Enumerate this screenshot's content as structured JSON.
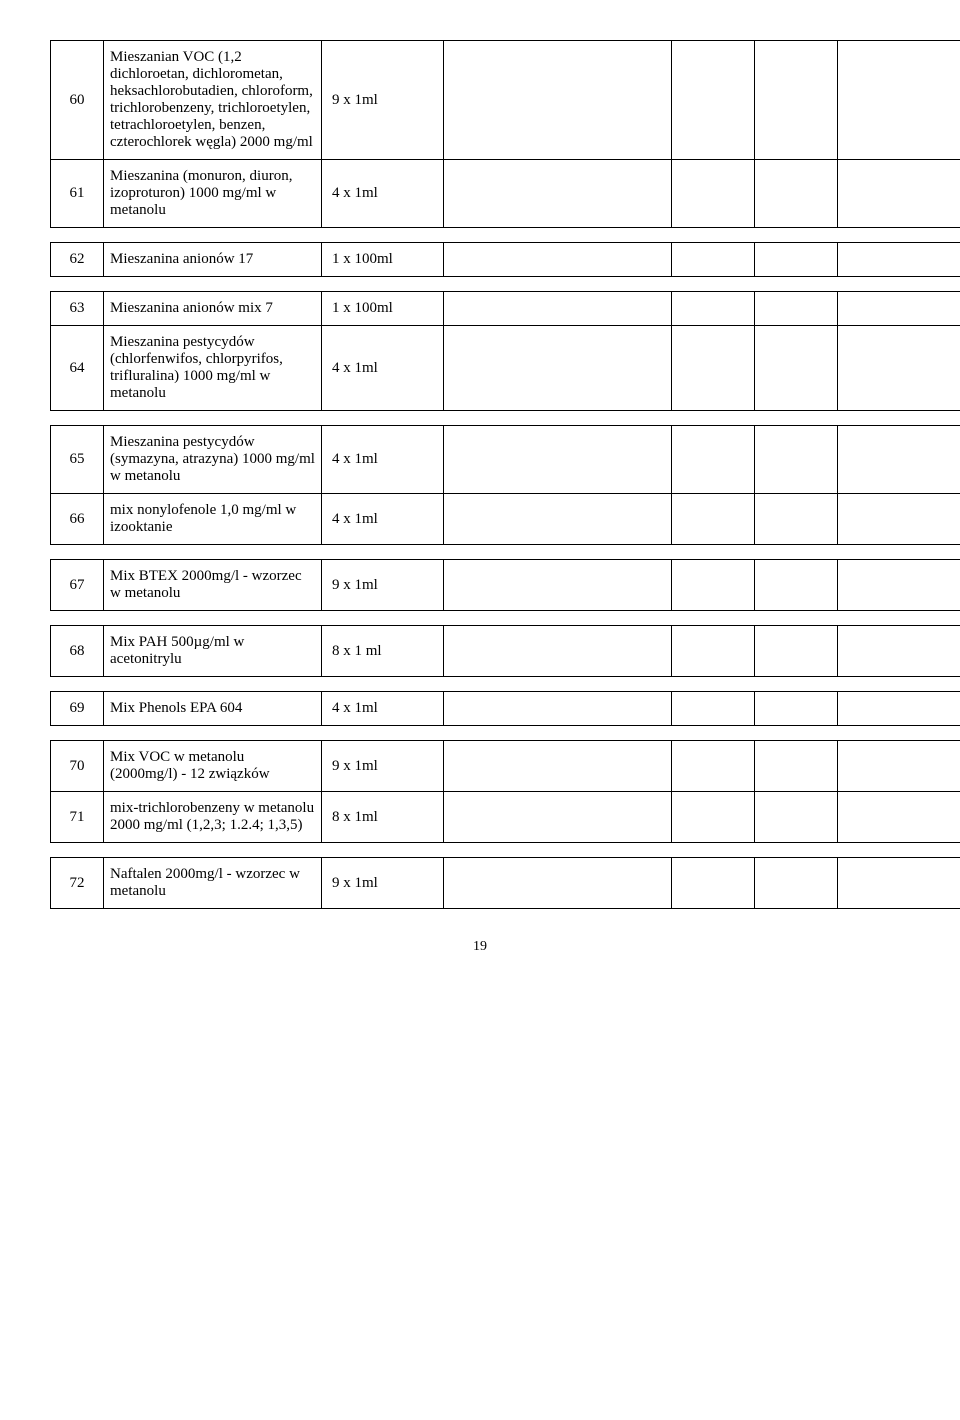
{
  "rows": [
    {
      "num": "60",
      "desc": "Mieszanian VOC (1,2 dichloroetan, dichlorometan, heksachlorobutadien, chloroform, trichlorobenzeny, trichloroetylen, tetrachloroetylen, benzen, czterochlorek węgla)  2000 mg/ml",
      "qty": "9 x  1ml"
    },
    {
      "num": "61",
      "desc": "Mieszanina (monuron, diuron, izoproturon) 1000 mg/ml w metanolu",
      "qty": "4 x  1ml"
    },
    {
      "num": "62",
      "desc": "Mieszanina anionów 17",
      "qty": "1 x 100ml"
    },
    {
      "num": "63",
      "desc": "Mieszanina anionów mix 7",
      "qty": "1 x 100ml"
    },
    {
      "num": "64",
      "desc": "Mieszanina pestycydów (chlorfenwifos, chlorpyrifos, trifluralina)  1000 mg/ml w metanolu",
      "qty": "4 x  1ml"
    },
    {
      "num": "65",
      "desc": "Mieszanina pestycydów (symazyna, atrazyna) 1000 mg/ml w metanolu",
      "qty": "4 x  1ml"
    },
    {
      "num": "66",
      "desc": "mix  nonylofenole 1,0 mg/ml w izooktanie",
      "qty": "4 x  1ml"
    },
    {
      "num": "67",
      "desc": "Mix BTEX 2000mg/l  - wzorzec w metanolu",
      "qty": "9 x  1ml"
    },
    {
      "num": "68",
      "desc": "Mix PAH 500µg/ml w acetonitrylu",
      "qty": "8 x 1 ml"
    },
    {
      "num": "69",
      "desc": "Mix Phenols EPA 604",
      "qty": "4 x  1ml"
    },
    {
      "num": "70",
      "desc": "Mix VOC w metanolu (2000mg/l) - 12 związków",
      "qty": "9 x  1ml"
    },
    {
      "num": "71",
      "desc": "mix-trichlorobenzeny w metanolu  2000 mg/ml (1,2,3; 1.2.4; 1,3,5)",
      "qty": "8 x  1ml"
    },
    {
      "num": "72",
      "desc": "Naftalen  2000mg/l  - wzorzec w metanolu",
      "qty": "9 x  1ml"
    }
  ],
  "groups": [
    [
      0,
      1
    ],
    [
      2
    ],
    [
      3,
      4
    ],
    [
      5,
      6
    ],
    [
      7
    ],
    [
      8
    ],
    [
      9
    ],
    [
      10,
      11
    ],
    [
      12
    ]
  ],
  "pageNumber": "19"
}
